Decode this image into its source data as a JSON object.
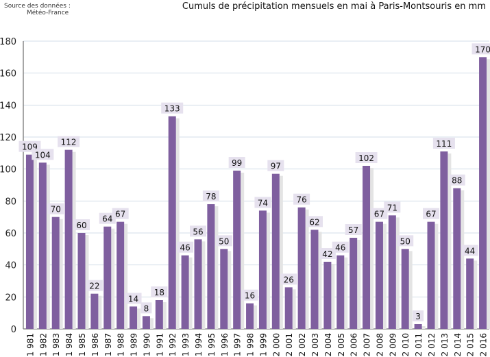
{
  "source": {
    "line1": "Source  des données :",
    "line2": "Météo-France"
  },
  "chart_data": {
    "type": "bar",
    "title": "Cumuls de précipitation mensuels en mai à Paris-Montsouris en mm",
    "xlabel": "",
    "ylabel": "",
    "ylim": [
      0,
      180
    ],
    "yticks": [
      0,
      20,
      40,
      60,
      80,
      100,
      120,
      140,
      160,
      180
    ],
    "grid": true,
    "categories": [
      "1 981",
      "1 982",
      "1 983",
      "1 984",
      "1 985",
      "1 986",
      "1 987",
      "1 988",
      "1 989",
      "1 990",
      "1 991",
      "1 992",
      "1 993",
      "1 994",
      "1 995",
      "1 996",
      "1 997",
      "1 998",
      "1 999",
      "2 000",
      "2 001",
      "2 002",
      "2 003",
      "2 004",
      "2 005",
      "2 006",
      "2 007",
      "2 008",
      "2 009",
      "2 010",
      "2 011",
      "2 012",
      "2 013",
      "2 014",
      "2 015",
      "2 016"
    ],
    "values": [
      109,
      104,
      70,
      112,
      60,
      22,
      64,
      67,
      14,
      8,
      18,
      133,
      46,
      56,
      78,
      50,
      99,
      16,
      74,
      97,
      26,
      76,
      62,
      42,
      46,
      57,
      102,
      67,
      71,
      50,
      3,
      67,
      111,
      88,
      44,
      170
    ],
    "colors": {
      "bar": "#7f5f9f",
      "label_bg": "#e6e1ee",
      "grid": "#d3dde8"
    }
  }
}
